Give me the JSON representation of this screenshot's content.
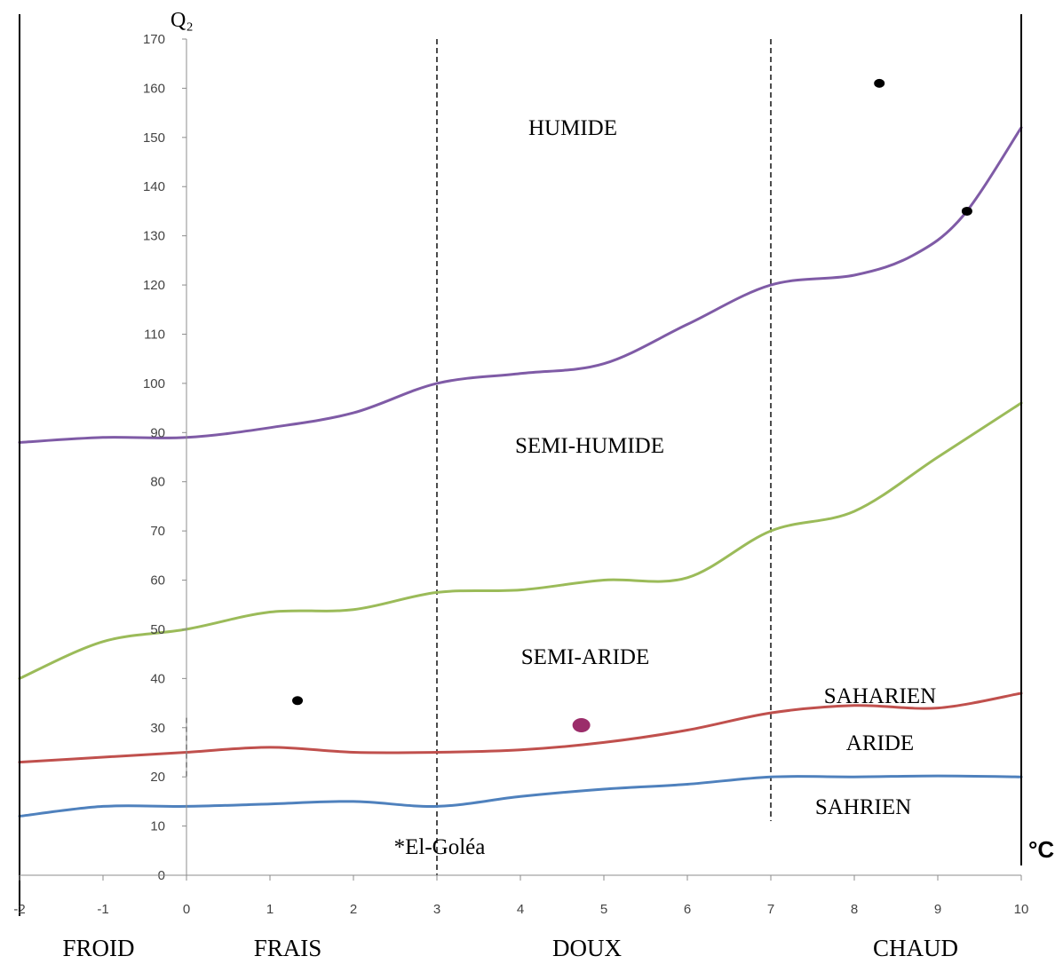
{
  "chart_data": {
    "type": "line",
    "ylabel": "Q₂",
    "xlabel": "°C",
    "xlim": [
      -2,
      10
    ],
    "ylim": [
      0,
      170
    ],
    "x_ticks": [
      "-2",
      "-1",
      "0",
      "1",
      "2",
      "3",
      "4",
      "5",
      "6",
      "7",
      "8",
      "9",
      "10"
    ],
    "y_ticks": [
      "0",
      "10",
      "20",
      "30",
      "40",
      "50",
      "60",
      "70",
      "80",
      "90",
      "100",
      "110",
      "120",
      "130",
      "140",
      "150",
      "160",
      "170"
    ],
    "series": [
      {
        "color": "#7f5ba6",
        "points": [
          [
            -2,
            88
          ],
          [
            -1,
            89
          ],
          [
            0,
            89
          ],
          [
            1,
            91
          ],
          [
            2,
            94
          ],
          [
            3,
            100
          ],
          [
            4,
            102
          ],
          [
            5,
            104
          ],
          [
            6,
            112
          ],
          [
            7,
            120
          ],
          [
            8,
            122
          ],
          [
            8.7,
            126
          ],
          [
            9.3,
            134
          ],
          [
            10,
            152
          ]
        ]
      },
      {
        "color": "#9bbb59",
        "points": [
          [
            -2,
            40
          ],
          [
            -1,
            47.5
          ],
          [
            0,
            50
          ],
          [
            1,
            53.5
          ],
          [
            2,
            54
          ],
          [
            3,
            57.5
          ],
          [
            4,
            58
          ],
          [
            5,
            60
          ],
          [
            6,
            60.5
          ],
          [
            7,
            70
          ],
          [
            8,
            74
          ],
          [
            9,
            85
          ],
          [
            10,
            96
          ]
        ]
      },
      {
        "color": "#c0504d",
        "points": [
          [
            -2,
            23
          ],
          [
            -1,
            24
          ],
          [
            0,
            25
          ],
          [
            1,
            26
          ],
          [
            2,
            25
          ],
          [
            3,
            25
          ],
          [
            4,
            25.5
          ],
          [
            5,
            27
          ],
          [
            6,
            29.5
          ],
          [
            7,
            33
          ],
          [
            8,
            34.5
          ],
          [
            9,
            34
          ],
          [
            10,
            37
          ]
        ]
      },
      {
        "color": "#4f81bd",
        "points": [
          [
            -2,
            12
          ],
          [
            -1,
            14
          ],
          [
            0,
            14
          ],
          [
            1,
            14.5
          ],
          [
            2,
            15
          ],
          [
            3,
            14
          ],
          [
            4,
            16
          ],
          [
            5,
            17.5
          ],
          [
            6,
            18.5
          ],
          [
            7,
            20
          ],
          [
            8,
            20
          ],
          [
            9,
            20.2
          ],
          [
            10,
            20
          ]
        ]
      }
    ],
    "stations": [
      {
        "x": 1.33,
        "y": 35.5,
        "color": "#000000"
      },
      {
        "x": 4.73,
        "y": 30.5,
        "color": "#9b2d6a"
      },
      {
        "x": 8.3,
        "y": 161,
        "color": "#000000"
      },
      {
        "x": 9.35,
        "y": 135,
        "color": "#000000"
      }
    ],
    "boundaries": [
      {
        "x": 3,
        "y_from": 0,
        "y_to": 170
      },
      {
        "x": 7,
        "y_from": 11,
        "y_to": 170
      },
      {
        "x": 0,
        "y_from": 20,
        "y_to": 32
      }
    ],
    "zones": [
      "HUMIDE",
      "SEMI-HUMIDE",
      "SEMI-ARIDE",
      "SAHARIEN",
      "ARIDE",
      "SAHRIEN"
    ],
    "seasons": [
      "FROID",
      "FRAIS",
      "DOUX",
      "CHAUD"
    ],
    "annotation": "*El-Goléa"
  }
}
